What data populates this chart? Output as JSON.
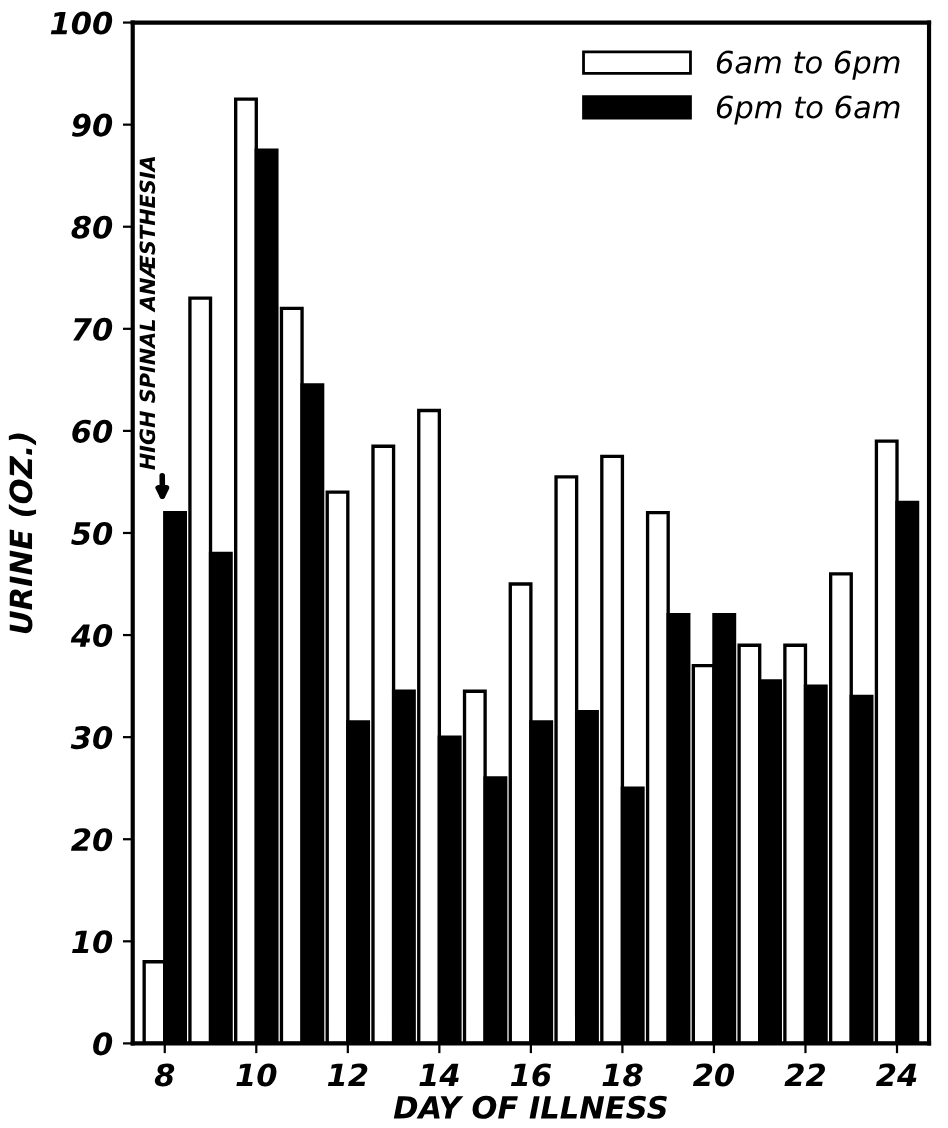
{
  "chart_data": {
    "type": "bar",
    "xlabel": "DAY OF ILLNESS",
    "ylabel": "URINE (OZ.)",
    "categories": [
      "8",
      null,
      "10",
      null,
      "12",
      null,
      "14",
      null,
      "16",
      null,
      "18",
      null,
      "20",
      null,
      "22",
      null,
      "24"
    ],
    "series": [
      {
        "name": "6am to 6pm",
        "color": "#ffffff",
        "values": [
          8,
          73,
          92.5,
          72,
          54,
          58.5,
          62,
          34.5,
          45,
          55.5,
          57.5,
          52,
          37,
          39,
          39,
          46,
          59
        ]
      },
      {
        "name": "6pm to 6am",
        "color": "#000000",
        "values": [
          52,
          48,
          87.5,
          64.5,
          31.5,
          34.5,
          30,
          26,
          31.5,
          32.5,
          25,
          42,
          42,
          35.5,
          35,
          34,
          53
        ]
      }
    ],
    "ylim": [
      0,
      100
    ],
    "yticks": [
      0,
      10,
      20,
      30,
      40,
      50,
      60,
      70,
      80,
      90,
      100
    ],
    "grid": false,
    "legend": "top right",
    "annotations": [
      {
        "text": "HIGH SPINAL ANÆSTHESIA",
        "x": "8",
        "y": 52
      }
    ]
  }
}
